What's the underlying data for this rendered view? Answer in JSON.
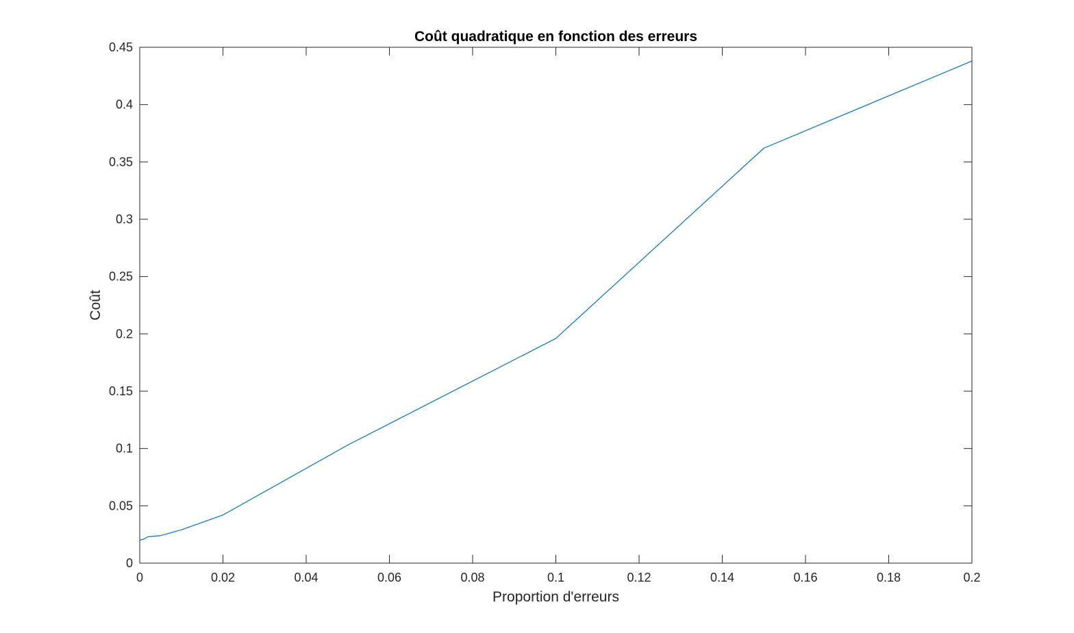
{
  "chart_data": {
    "type": "line",
    "title": "Coût quadratique en fonction des erreurs",
    "xlabel": "Proportion d'erreurs",
    "ylabel": "Coût",
    "xlim": [
      0,
      0.2
    ],
    "ylim": [
      0,
      0.45
    ],
    "xticks": [
      0,
      0.02,
      0.04,
      0.06,
      0.08,
      0.1,
      0.12,
      0.14,
      0.16,
      0.18,
      0.2
    ],
    "xtick_labels": [
      "0",
      "0.02",
      "0.04",
      "0.06",
      "0.08",
      "0.1",
      "0.12",
      "0.14",
      "0.16",
      "0.18",
      "0.2"
    ],
    "yticks": [
      0,
      0.05,
      0.1,
      0.15,
      0.2,
      0.25,
      0.3,
      0.35,
      0.4,
      0.45
    ],
    "ytick_labels": [
      "0",
      "0.05",
      "0.1",
      "0.15",
      "0.2",
      "0.25",
      "0.3",
      "0.35",
      "0.4",
      "0.45"
    ],
    "grid": false,
    "series": [
      {
        "color": "#0072bd",
        "x": [
          0,
          0.001,
          0.002,
          0.005,
          0.01,
          0.02,
          0.05,
          0.1,
          0.15,
          0.2
        ],
        "y": [
          0.02,
          0.021,
          0.023,
          0.024,
          0.029,
          0.042,
          0.103,
          0.196,
          0.362,
          0.438
        ]
      }
    ]
  }
}
